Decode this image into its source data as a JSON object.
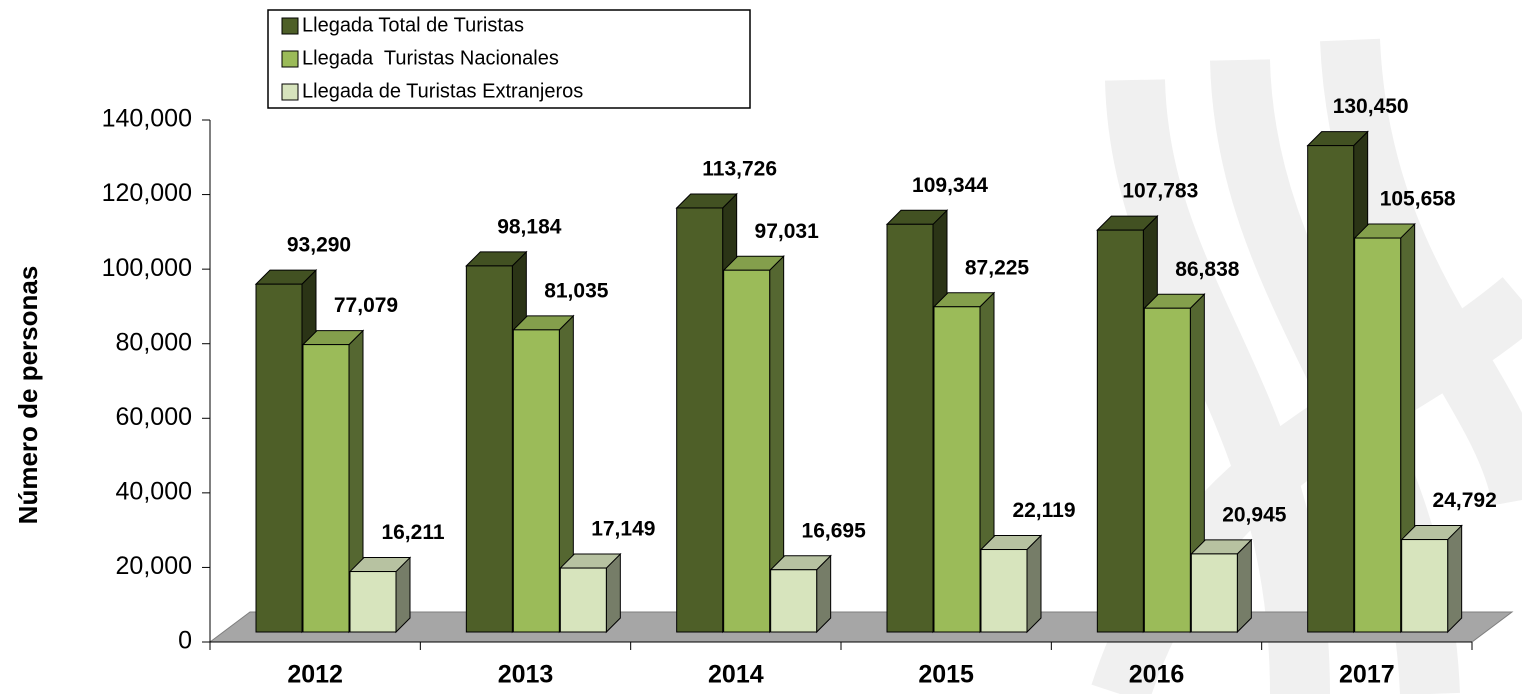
{
  "chart_data": {
    "type": "bar3d",
    "y_label": "Número de personas",
    "categories": [
      "2012",
      "2013",
      "2014",
      "2015",
      "2016",
      "2017"
    ],
    "series": [
      {
        "name": "Llegada Total de Turistas",
        "color": "#4e5f28",
        "values": [
          93290,
          98184,
          113726,
          109344,
          107783,
          130450
        ],
        "value_labels": [
          "93,290",
          "98,184",
          "113,726",
          "109,344",
          "107,783",
          "130,450"
        ]
      },
      {
        "name": "Llegada  Turistas Nacionales",
        "color": "#9bbb59",
        "values": [
          77079,
          81035,
          97031,
          87225,
          86838,
          105658
        ],
        "value_labels": [
          "77,079",
          "81,035",
          "97,031",
          "87,225",
          "86,838",
          "105,658"
        ]
      },
      {
        "name": "Llegada de Turistas Extranjeros",
        "color": "#d7e4bd",
        "values": [
          16211,
          17149,
          16695,
          22119,
          20945,
          24792
        ],
        "value_labels": [
          "16,211",
          "17,149",
          "16,695",
          "22,119",
          "20,945",
          "24,792"
        ]
      }
    ],
    "ylim": [
      0,
      140000
    ],
    "yticks": [
      0,
      {
        "value": 20000,
        "label": "20,000"
      },
      {
        "value": 40000,
        "label": "40,000"
      },
      {
        "value": 60000,
        "label": "60,000"
      },
      {
        "value": 80000,
        "label": "80,000"
      },
      {
        "value": 100000,
        "label": "100,000"
      },
      {
        "value": 120000,
        "label": "120,000"
      },
      {
        "value": 140000,
        "label": "140,000"
      }
    ],
    "legend": "top-left"
  }
}
